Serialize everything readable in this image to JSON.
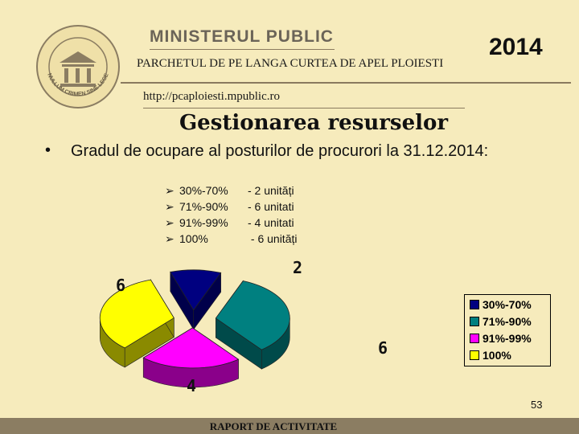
{
  "header": {
    "ministry": "MINISTERUL PUBLIC",
    "parchet": "PARCHETUL DE PE LANGA CURTEA DE APEL PLOIESTI",
    "url": "http://pcaploiesti.mpublic.ro",
    "year": "2014",
    "seal_text": "NULLUM CRIMEN SINE LEGE"
  },
  "slide": {
    "title": "Gestionarea resurselor",
    "bullet": "Gradul de ocupare al posturilor de procurori la 31.12.2014:",
    "sublist": [
      {
        "range": "30%-70%",
        "count": "- 2 unități"
      },
      {
        "range": "71%-90%",
        "count": "- 6 unitati"
      },
      {
        "range": "91%-99%",
        "count": "- 4 unitati"
      },
      {
        "range": "100%",
        "count": " - 6 unități"
      }
    ],
    "page_number": "53",
    "footer": "RAPORT DE ACTIVITATE"
  },
  "chart_data": {
    "type": "pie",
    "categories": [
      "30%-70%",
      "71%-90%",
      "91%-99%",
      "100%"
    ],
    "values": [
      2,
      6,
      4,
      6
    ],
    "data_labels": [
      "2",
      "6",
      "4",
      "6"
    ],
    "colors": [
      "#000080",
      "#008080",
      "#ff00ff",
      "#ffff00"
    ],
    "side_colors": [
      "#00004a",
      "#004a4a",
      "#8a008a",
      "#8a8a00"
    ],
    "legend_position": "right",
    "three_d": true
  }
}
